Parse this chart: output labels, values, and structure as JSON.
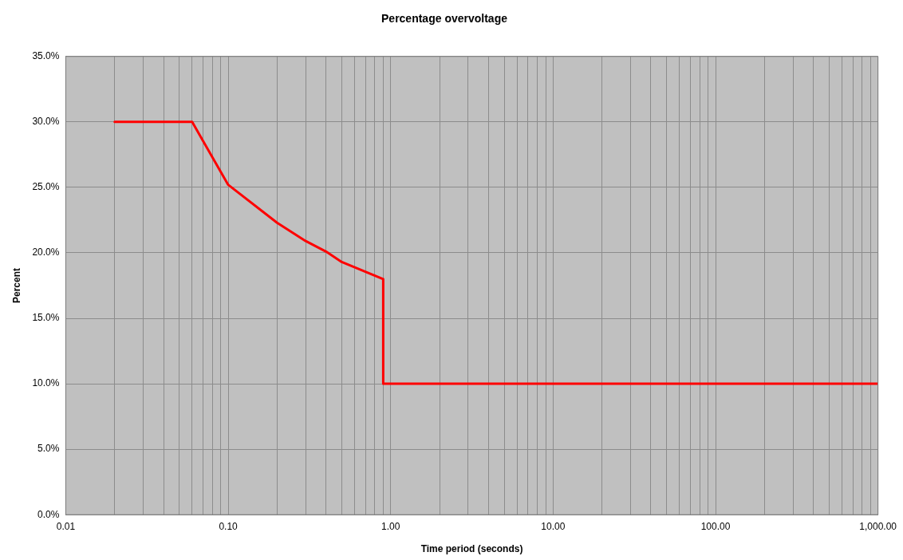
{
  "chart_data": {
    "type": "line",
    "title": "Percentage overvoltage",
    "xlabel": "Time period (seconds)",
    "ylabel": "Percent",
    "log": "x",
    "grid": true,
    "legend": false,
    "marker": "none",
    "line_style": "solid",
    "xlim": [
      0.01,
      1000
    ],
    "ylim": [
      0,
      35
    ],
    "xticks": [
      {
        "value": 0.01,
        "label": "0.01"
      },
      {
        "value": 0.02,
        "label": null
      },
      {
        "value": 0.03,
        "label": null
      },
      {
        "value": 0.04,
        "label": null
      },
      {
        "value": 0.05,
        "label": null
      },
      {
        "value": 0.06,
        "label": null
      },
      {
        "value": 0.07,
        "label": null
      },
      {
        "value": 0.08,
        "label": null
      },
      {
        "value": 0.09,
        "label": null
      },
      {
        "value": 0.1,
        "label": "0.10"
      },
      {
        "value": 0.2,
        "label": null
      },
      {
        "value": 0.3,
        "label": null
      },
      {
        "value": 0.4,
        "label": null
      },
      {
        "value": 0.5,
        "label": null
      },
      {
        "value": 0.6,
        "label": null
      },
      {
        "value": 0.7,
        "label": null
      },
      {
        "value": 0.8,
        "label": null
      },
      {
        "value": 0.9,
        "label": null
      },
      {
        "value": 1,
        "label": "1.00"
      },
      {
        "value": 2,
        "label": null
      },
      {
        "value": 3,
        "label": null
      },
      {
        "value": 4,
        "label": null
      },
      {
        "value": 5,
        "label": null
      },
      {
        "value": 6,
        "label": null
      },
      {
        "value": 7,
        "label": null
      },
      {
        "value": 8,
        "label": null
      },
      {
        "value": 9,
        "label": null
      },
      {
        "value": 10,
        "label": "10.00"
      },
      {
        "value": 20,
        "label": null
      },
      {
        "value": 30,
        "label": null
      },
      {
        "value": 40,
        "label": null
      },
      {
        "value": 50,
        "label": null
      },
      {
        "value": 60,
        "label": null
      },
      {
        "value": 70,
        "label": null
      },
      {
        "value": 80,
        "label": null
      },
      {
        "value": 90,
        "label": null
      },
      {
        "value": 100,
        "label": "100.00"
      },
      {
        "value": 200,
        "label": null
      },
      {
        "value": 300,
        "label": null
      },
      {
        "value": 400,
        "label": null
      },
      {
        "value": 500,
        "label": null
      },
      {
        "value": 600,
        "label": null
      },
      {
        "value": 700,
        "label": null
      },
      {
        "value": 800,
        "label": null
      },
      {
        "value": 900,
        "label": null
      },
      {
        "value": 1000,
        "label": "1,000.00"
      }
    ],
    "yticks": [
      {
        "value": 0,
        "label": "0.0%"
      },
      {
        "value": 5,
        "label": "5.0%"
      },
      {
        "value": 10,
        "label": "10.0%"
      },
      {
        "value": 15,
        "label": "15.0%"
      },
      {
        "value": 20,
        "label": "20.0%"
      },
      {
        "value": 25,
        "label": "25.0%"
      },
      {
        "value": 30,
        "label": "30.0%"
      },
      {
        "value": 35,
        "label": "35.0%"
      }
    ],
    "x": [
      0.02,
      0.06,
      0.1,
      0.2,
      0.3,
      0.4,
      0.5,
      0.9,
      0.9,
      1000
    ],
    "series": [
      {
        "color": "#ff0000",
        "values": [
          30,
          30,
          25.2,
          22.3,
          20.9,
          20.1,
          19.3,
          18,
          10,
          10
        ]
      }
    ]
  }
}
